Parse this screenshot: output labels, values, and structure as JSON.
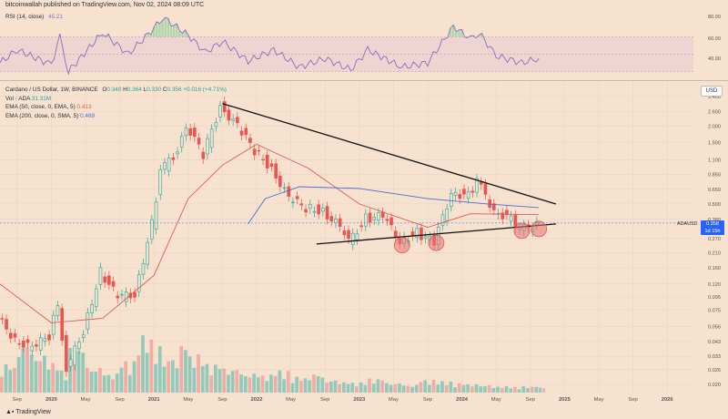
{
  "header": {
    "publisher_text": "bitcoinwallah published on TradingView.com, Nov 02, 2024 08:09 UTC"
  },
  "rsi": {
    "label": "RSI (14, close)",
    "value": "45.21",
    "color": "#8e6bbf",
    "axis_ticks": [
      "80.00",
      "60.00",
      "40.00"
    ]
  },
  "legend": {
    "symbol_line": "Cardano / US Dollar, 1W, BINANCE",
    "ohlc_o_label": "O",
    "ohlc_o": "0.340",
    "ohlc_h_label": "H",
    "ohlc_h": "0.364",
    "ohlc_l_label": "L",
    "ohlc_l": "0.330",
    "ohlc_c_label": "C",
    "ohlc_c": "0.356",
    "ohlc_change": "+0.016 (+4.71%)",
    "vol_label": "Vol · ADA",
    "vol_value": "31.31M",
    "ema50_label": "EMA (50, close, 0, EMA, 5)",
    "ema50_value": "0.413",
    "ema200_label": "EMA (200, close, 0, SMA, 5)",
    "ema200_value": "0.469"
  },
  "currency_button": "USD",
  "price_tag": {
    "symbol": "ADAUSD",
    "value": "0.358",
    "countdown": "1d 15h"
  },
  "footer": {
    "brand": "TradingView"
  },
  "colors": {
    "background": "#f6e2cf",
    "up": "#26a69a",
    "down": "#ef5350",
    "ema50": "#e05a5a",
    "ema200": "#4a6bd8",
    "rsi_line": "#8e6bbf",
    "trendline": "#111111",
    "circle_fill": "#e57373"
  },
  "chart_data": {
    "type": "candlestick",
    "title": "Cardano / US Dollar, 1W, BINANCE",
    "y_scale": "log",
    "y_ticks": [
      "3.400",
      "2.600",
      "2.000",
      "1.500",
      "1.100",
      "0.850",
      "0.650",
      "0.500",
      "0.380",
      "0.270",
      "0.210",
      "0.160",
      "0.120",
      "0.095",
      "0.075",
      "0.056",
      "0.043",
      "0.033",
      "0.026",
      "0.020"
    ],
    "x_ticks": [
      "Sep",
      "2020",
      "May",
      "Sep",
      "2021",
      "May",
      "Sep",
      "2022",
      "May",
      "Sep",
      "2023",
      "May",
      "Sep",
      "2024",
      "May",
      "Sep",
      "2025",
      "May",
      "Sep",
      "2026"
    ],
    "price_path": [
      {
        "t": "2019-07",
        "p": 0.065
      },
      {
        "t": "2019-09",
        "p": 0.045
      },
      {
        "t": "2019-11",
        "p": 0.038
      },
      {
        "t": "2020-01",
        "p": 0.048
      },
      {
        "t": "2020-02",
        "p": 0.085
      },
      {
        "t": "2020-03",
        "p": 0.026
      },
      {
        "t": "2020-05",
        "p": 0.052
      },
      {
        "t": "2020-07",
        "p": 0.15
      },
      {
        "t": "2020-09",
        "p": 0.095
      },
      {
        "t": "2020-11",
        "p": 0.1
      },
      {
        "t": "2021-01",
        "p": 0.35
      },
      {
        "t": "2021-02",
        "p": 0.9
      },
      {
        "t": "2021-04",
        "p": 1.3
      },
      {
        "t": "2021-05",
        "p": 2.1
      },
      {
        "t": "2021-07",
        "p": 1.2
      },
      {
        "t": "2021-09",
        "p": 2.9
      },
      {
        "t": "2021-11",
        "p": 2.0
      },
      {
        "t": "2022-01",
        "p": 1.3
      },
      {
        "t": "2022-03",
        "p": 0.95
      },
      {
        "t": "2022-05",
        "p": 0.55
      },
      {
        "t": "2022-07",
        "p": 0.47
      },
      {
        "t": "2022-09",
        "p": 0.44
      },
      {
        "t": "2022-11",
        "p": 0.33
      },
      {
        "t": "2022-12",
        "p": 0.25
      },
      {
        "t": "2023-02",
        "p": 0.39
      },
      {
        "t": "2023-04",
        "p": 0.4
      },
      {
        "t": "2023-06",
        "p": 0.26
      },
      {
        "t": "2023-08",
        "p": 0.3
      },
      {
        "t": "2023-10",
        "p": 0.25
      },
      {
        "t": "2023-12",
        "p": 0.62
      },
      {
        "t": "2024-02",
        "p": 0.58
      },
      {
        "t": "2024-03",
        "p": 0.75
      },
      {
        "t": "2024-05",
        "p": 0.45
      },
      {
        "t": "2024-07",
        "p": 0.38
      },
      {
        "t": "2024-08",
        "p": 0.31
      },
      {
        "t": "2024-10",
        "p": 0.356
      }
    ],
    "ema50_path": [
      {
        "t": "2019-07",
        "p": 0.12
      },
      {
        "t": "2020-01",
        "p": 0.06
      },
      {
        "t": "2020-07",
        "p": 0.065
      },
      {
        "t": "2021-01",
        "p": 0.14
      },
      {
        "t": "2021-05",
        "p": 0.55
      },
      {
        "t": "2021-09",
        "p": 1.0
      },
      {
        "t": "2022-01",
        "p": 1.45
      },
      {
        "t": "2022-07",
        "p": 0.95
      },
      {
        "t": "2023-01",
        "p": 0.5
      },
      {
        "t": "2023-09",
        "p": 0.33
      },
      {
        "t": "2024-02",
        "p": 0.42
      },
      {
        "t": "2024-10",
        "p": 0.413
      }
    ],
    "ema200_path": [
      {
        "t": "2021-12",
        "p": 0.35
      },
      {
        "t": "2022-02",
        "p": 0.55
      },
      {
        "t": "2022-06",
        "p": 0.68
      },
      {
        "t": "2023-01",
        "p": 0.66
      },
      {
        "t": "2023-09",
        "p": 0.55
      },
      {
        "t": "2024-04",
        "p": 0.5
      },
      {
        "t": "2024-10",
        "p": 0.469
      }
    ],
    "rsi_path": [
      {
        "t": "2019-07",
        "p": 40
      },
      {
        "t": "2019-09",
        "p": 55
      },
      {
        "t": "2020-01",
        "p": 38
      },
      {
        "t": "2020-02",
        "p": 70
      },
      {
        "t": "2020-03",
        "p": 30
      },
      {
        "t": "2020-07",
        "p": 75
      },
      {
        "t": "2020-10",
        "p": 50
      },
      {
        "t": "2021-01",
        "p": 80
      },
      {
        "t": "2021-02",
        "p": 93
      },
      {
        "t": "2021-05",
        "p": 72
      },
      {
        "t": "2021-07",
        "p": 52
      },
      {
        "t": "2021-09",
        "p": 65
      },
      {
        "t": "2021-12",
        "p": 42
      },
      {
        "t": "2022-03",
        "p": 55
      },
      {
        "t": "2022-06",
        "p": 35
      },
      {
        "t": "2022-09",
        "p": 45
      },
      {
        "t": "2022-12",
        "p": 32
      },
      {
        "t": "2023-02",
        "p": 55
      },
      {
        "t": "2023-06",
        "p": 35
      },
      {
        "t": "2023-09",
        "p": 40
      },
      {
        "t": "2023-12",
        "p": 82
      },
      {
        "t": "2024-02",
        "p": 68
      },
      {
        "t": "2024-03",
        "p": 75
      },
      {
        "t": "2024-05",
        "p": 48
      },
      {
        "t": "2024-08",
        "p": 40
      },
      {
        "t": "2024-10",
        "p": 45.21
      }
    ],
    "volume_heights": [
      0.45,
      0.8,
      0.6,
      0.5,
      0.35,
      0.7,
      0.4,
      0.3,
      0.5,
      0.9,
      0.75,
      0.55,
      0.85,
      0.6,
      0.45,
      0.38,
      0.3,
      0.28,
      0.35,
      0.25,
      0.3,
      0.2,
      0.18,
      0.16,
      0.22,
      0.15,
      0.12,
      0.2,
      0.18,
      0.15,
      0.14,
      0.12,
      0.1,
      0.09,
      0.1,
      0.08
    ],
    "trendlines": [
      {
        "name": "upper",
        "from": {
          "t": "2021-09",
          "p": 3.0
        },
        "to": {
          "t": "2024-12",
          "p": 0.5
        }
      },
      {
        "name": "lower",
        "from": {
          "t": "2022-08",
          "p": 0.245
        },
        "to": {
          "t": "2024-12",
          "p": 0.35
        }
      }
    ],
    "highlighted_lows": [
      {
        "t": "2023-06",
        "p": 0.24
      },
      {
        "t": "2023-10",
        "p": 0.25
      },
      {
        "t": "2024-08",
        "p": 0.31
      },
      {
        "t": "2024-10",
        "p": 0.32
      }
    ]
  }
}
